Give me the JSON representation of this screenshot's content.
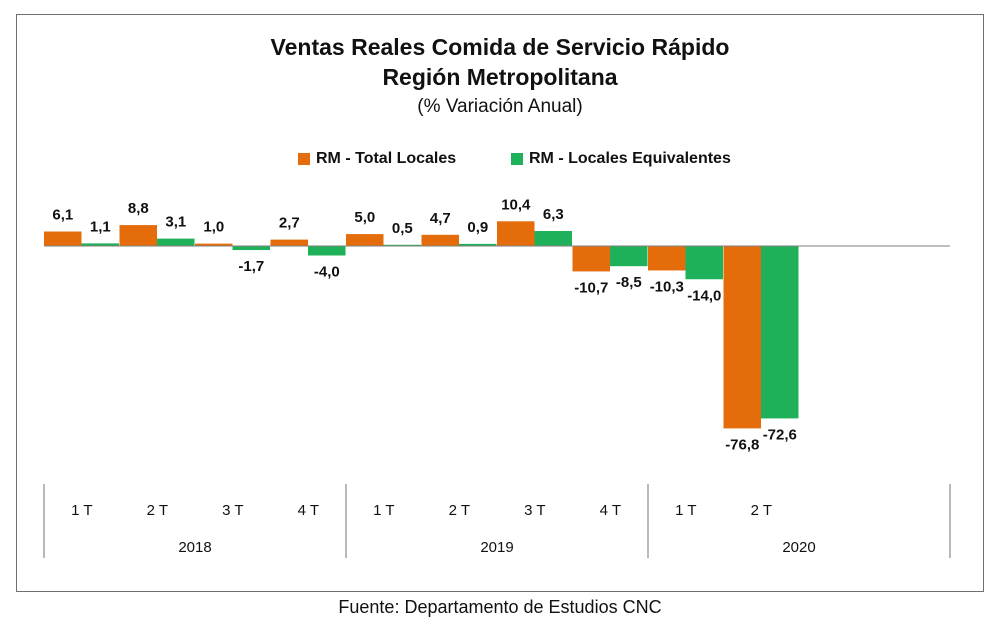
{
  "header": {
    "title_line1": "Ventas Reales Comida de Servicio Rápido",
    "title_line2": "Región Metropolitana",
    "subtitle": "(% Variación Anual)"
  },
  "source": "Fuente: Departamento de Estudios CNC",
  "colors": {
    "total": "#E46C0A",
    "equiv": "#1FB05A"
  },
  "chart_data": {
    "type": "bar",
    "title": "Ventas Reales Comida de Servicio Rápido Región Metropolitana",
    "subtitle": "(% Variación Anual)",
    "legend_position": "top",
    "grid": false,
    "groups": [
      {
        "year": "2018",
        "quarters": [
          "1 T",
          "2 T",
          "3 T",
          "4 T"
        ]
      },
      {
        "year": "2019",
        "quarters": [
          "1 T",
          "2 T",
          "3 T",
          "4 T"
        ]
      },
      {
        "year": "2020",
        "quarters": [
          "1 T",
          "2 T"
        ]
      }
    ],
    "categories": [
      "2018 1 T",
      "2018 2 T",
      "2018 3 T",
      "2018 4 T",
      "2019 1 T",
      "2019 2 T",
      "2019 3 T",
      "2019 4 T",
      "2020 1 T",
      "2020 2 T"
    ],
    "series": [
      {
        "name": "RM - Total Locales",
        "values": [
          6.1,
          8.8,
          1.0,
          2.7,
          5.0,
          4.7,
          10.4,
          -10.7,
          -10.3,
          -76.8
        ],
        "labels": [
          "6,1",
          "8,8",
          "1,0",
          "2,7",
          "5,0",
          "4,7",
          "10,4",
          "-10,7",
          "-10,3",
          "-76,8"
        ]
      },
      {
        "name": "RM - Locales Equivalentes",
        "values": [
          1.1,
          3.1,
          -1.7,
          -4.0,
          0.5,
          0.9,
          6.3,
          -8.5,
          -14.0,
          -72.6
        ],
        "labels": [
          "1,1",
          "3,1",
          "-1,7",
          "-4,0",
          "0,5",
          "0,9",
          "6,3",
          "-8,5",
          "-14,0",
          "-72,6"
        ]
      }
    ]
  }
}
